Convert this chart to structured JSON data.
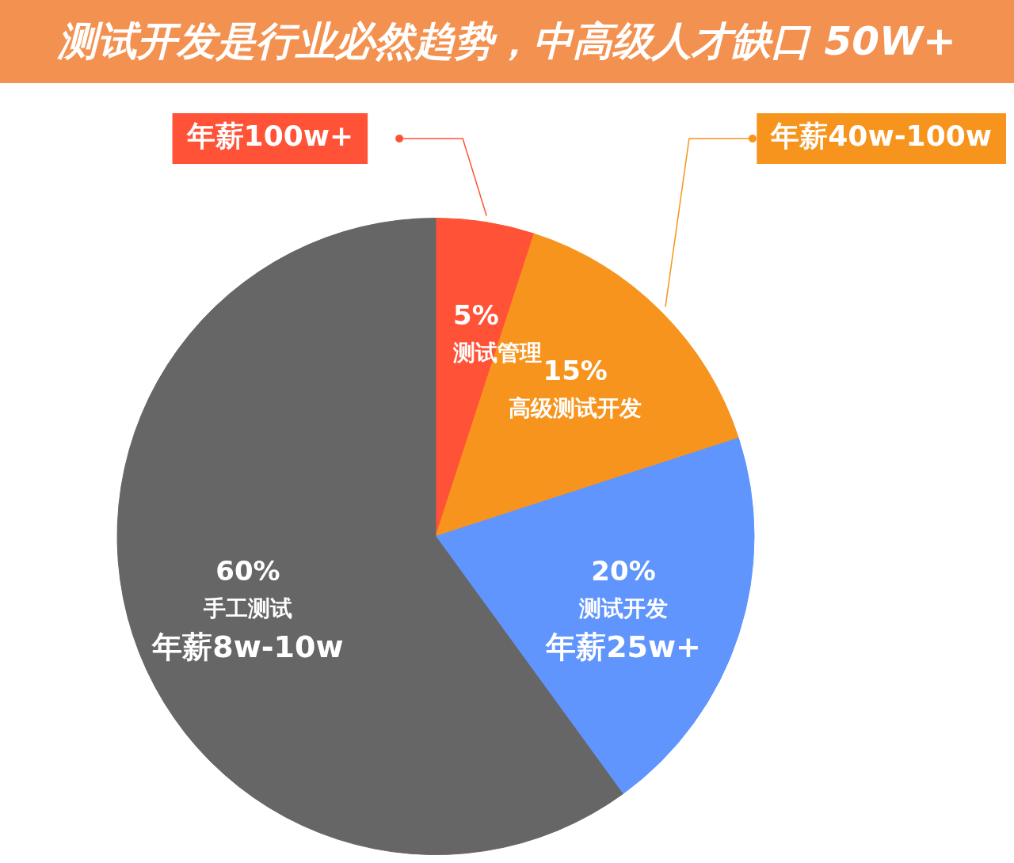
{
  "chart_data": {
    "type": "pie",
    "title": "测试开发是行业必然趋势，中高级人才缺口 50W+",
    "categories": [
      "测试管理",
      "高级测试开发",
      "测试开发",
      "手工测试"
    ],
    "values": [
      5,
      15,
      20,
      60
    ],
    "value_labels": [
      "5%",
      "15%",
      "20%",
      "60%"
    ],
    "colors": [
      "#ff5236",
      "#f7941e",
      "#5f95fc",
      "#666666"
    ],
    "legend": false,
    "annotations": [
      {
        "text": "年薪100w+",
        "x": "测试管理"
      },
      {
        "text": "年薪40w-100w",
        "x": "高级测试开发"
      },
      {
        "text": "年薪25w+",
        "x": "测试开发"
      },
      {
        "text": "年薪8w-10w",
        "x": "手工测试"
      }
    ]
  }
}
